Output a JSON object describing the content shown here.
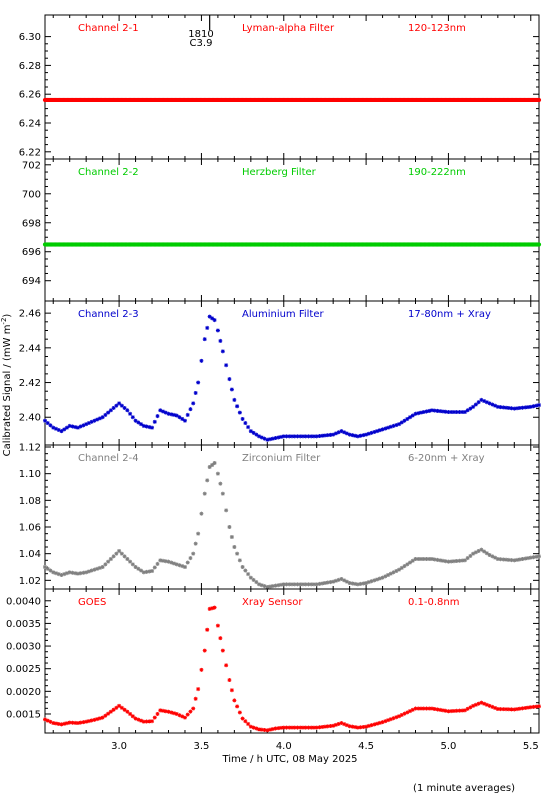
{
  "figure": {
    "ylabel": "Calibrated Signal / (mW m",
    "ylabel_sup": "-2",
    "ylabel_close": ")",
    "xlabel": "Time / h UTC, 08 May 2025",
    "footnote": "(1 minute averages)",
    "flare_label_time": "1810",
    "flare_label_class": "C3.9",
    "flare_time_h": 3.55
  },
  "chart_data": [
    {
      "type": "scatter",
      "labels": [
        "Channel 2-1",
        "Lyman-alpha Filter",
        "120-123nm"
      ],
      "color": "#ff0000",
      "xlim": [
        2.55,
        5.55
      ],
      "ylim": [
        6.215,
        6.315
      ],
      "ytick_values": [
        6.22,
        6.24,
        6.26,
        6.28,
        6.3
      ],
      "ytick_labels": [
        "6.22",
        "6.24",
        "6.26",
        "6.28",
        "6.30"
      ],
      "series": [
        {
          "base": 6.256,
          "points": [
            [
              2.55,
              6.256
            ],
            [
              5.55,
              6.256
            ]
          ]
        }
      ]
    },
    {
      "type": "scatter",
      "labels": [
        "Channel 2-2",
        "Herzberg Filter",
        "190-222nm"
      ],
      "color": "#00cc00",
      "xlim": [
        2.55,
        5.55
      ],
      "ylim": [
        692.6,
        702.4
      ],
      "ytick_values": [
        694,
        696,
        698,
        700,
        702
      ],
      "ytick_labels": [
        "694",
        "696",
        "698",
        "700",
        "702"
      ],
      "series": [
        {
          "base": 696.5,
          "points": [
            [
              2.55,
              696.5
            ],
            [
              5.55,
              696.5
            ]
          ]
        }
      ]
    },
    {
      "type": "scatter",
      "labels": [
        "Channel 2-3",
        "Aluminium Filter",
        "17-80nm + Xray"
      ],
      "color": "#0000cc",
      "xlim": [
        2.55,
        5.55
      ],
      "ylim": [
        2.384,
        2.467
      ],
      "ytick_values": [
        2.4,
        2.42,
        2.44,
        2.46
      ],
      "ytick_labels": [
        "2.40",
        "2.42",
        "2.44",
        "2.46"
      ],
      "series": [
        {
          "points": [
            [
              2.55,
              2.398
            ],
            [
              2.6,
              2.394
            ],
            [
              2.65,
              2.392
            ],
            [
              2.7,
              2.395
            ],
            [
              2.75,
              2.394
            ],
            [
              2.8,
              2.396
            ],
            [
              2.85,
              2.398
            ],
            [
              2.9,
              2.4
            ],
            [
              2.95,
              2.404
            ],
            [
              3.0,
              2.408
            ],
            [
              3.05,
              2.404
            ],
            [
              3.1,
              2.398
            ],
            [
              3.15,
              2.395
            ],
            [
              3.2,
              2.394
            ],
            [
              3.25,
              2.404
            ],
            [
              3.3,
              2.402
            ],
            [
              3.35,
              2.401
            ],
            [
              3.4,
              2.398
            ],
            [
              3.45,
              2.408
            ],
            [
              3.48,
              2.42
            ],
            [
              3.52,
              2.445
            ],
            [
              3.55,
              2.458
            ],
            [
              3.58,
              2.456
            ],
            [
              3.6,
              2.45
            ],
            [
              3.63,
              2.438
            ],
            [
              3.67,
              2.422
            ],
            [
              3.7,
              2.41
            ],
            [
              3.75,
              2.399
            ],
            [
              3.8,
              2.392
            ],
            [
              3.85,
              2.389
            ],
            [
              3.9,
              2.387
            ],
            [
              3.95,
              2.388
            ],
            [
              4.0,
              2.389
            ],
            [
              4.1,
              2.389
            ],
            [
              4.2,
              2.389
            ],
            [
              4.3,
              2.39
            ],
            [
              4.35,
              2.392
            ],
            [
              4.4,
              2.39
            ],
            [
              4.45,
              2.389
            ],
            [
              4.5,
              2.39
            ],
            [
              4.6,
              2.393
            ],
            [
              4.7,
              2.396
            ],
            [
              4.8,
              2.402
            ],
            [
              4.9,
              2.404
            ],
            [
              5.0,
              2.403
            ],
            [
              5.1,
              2.403
            ],
            [
              5.15,
              2.406
            ],
            [
              5.2,
              2.41
            ],
            [
              5.25,
              2.408
            ],
            [
              5.3,
              2.406
            ],
            [
              5.4,
              2.405
            ],
            [
              5.5,
              2.406
            ],
            [
              5.55,
              2.407
            ]
          ]
        }
      ]
    },
    {
      "type": "scatter",
      "labels": [
        "Channel 2-4",
        "Zirconium Filter",
        "6-20nm + Xray"
      ],
      "color": "#808080",
      "xlim": [
        2.55,
        5.55
      ],
      "ylim": [
        1.0135,
        1.1215
      ],
      "ytick_values": [
        1.02,
        1.04,
        1.06,
        1.08,
        1.1,
        1.12
      ],
      "ytick_labels": [
        "1.02",
        "1.04",
        "1.06",
        "1.08",
        "1.10",
        "1.12"
      ],
      "series": [
        {
          "points": [
            [
              2.55,
              1.03
            ],
            [
              2.6,
              1.026
            ],
            [
              2.65,
              1.024
            ],
            [
              2.7,
              1.026
            ],
            [
              2.75,
              1.025
            ],
            [
              2.8,
              1.026
            ],
            [
              2.85,
              1.028
            ],
            [
              2.9,
              1.03
            ],
            [
              2.95,
              1.036
            ],
            [
              3.0,
              1.042
            ],
            [
              3.05,
              1.036
            ],
            [
              3.1,
              1.03
            ],
            [
              3.15,
              1.026
            ],
            [
              3.2,
              1.027
            ],
            [
              3.25,
              1.035
            ],
            [
              3.3,
              1.034
            ],
            [
              3.35,
              1.032
            ],
            [
              3.4,
              1.03
            ],
            [
              3.45,
              1.04
            ],
            [
              3.48,
              1.055
            ],
            [
              3.52,
              1.085
            ],
            [
              3.55,
              1.105
            ],
            [
              3.58,
              1.108
            ],
            [
              3.6,
              1.1
            ],
            [
              3.63,
              1.085
            ],
            [
              3.67,
              1.06
            ],
            [
              3.7,
              1.045
            ],
            [
              3.75,
              1.03
            ],
            [
              3.8,
              1.022
            ],
            [
              3.85,
              1.017
            ],
            [
              3.9,
              1.015
            ],
            [
              3.95,
              1.016
            ],
            [
              4.0,
              1.017
            ],
            [
              4.1,
              1.017
            ],
            [
              4.2,
              1.017
            ],
            [
              4.3,
              1.019
            ],
            [
              4.35,
              1.021
            ],
            [
              4.4,
              1.018
            ],
            [
              4.45,
              1.017
            ],
            [
              4.5,
              1.018
            ],
            [
              4.6,
              1.022
            ],
            [
              4.7,
              1.028
            ],
            [
              4.8,
              1.036
            ],
            [
              4.9,
              1.036
            ],
            [
              5.0,
              1.034
            ],
            [
              5.1,
              1.035
            ],
            [
              5.15,
              1.04
            ],
            [
              5.2,
              1.043
            ],
            [
              5.25,
              1.039
            ],
            [
              5.3,
              1.036
            ],
            [
              5.4,
              1.035
            ],
            [
              5.5,
              1.037
            ],
            [
              5.55,
              1.038
            ]
          ]
        }
      ]
    },
    {
      "type": "scatter",
      "labels": [
        "GOES",
        "Xray Sensor",
        "0.1-0.8nm"
      ],
      "color": "#ff0000",
      "xlim": [
        2.55,
        5.55
      ],
      "ylim": [
        0.00108,
        0.00426
      ],
      "ytick_values": [
        0.0015,
        0.002,
        0.0025,
        0.003,
        0.0035,
        0.004
      ],
      "ytick_labels": [
        "0.0015",
        "0.0020",
        "0.0025",
        "0.0030",
        "0.0035",
        "0.0040"
      ],
      "series": [
        {
          "points": [
            [
              2.55,
              0.00138
            ],
            [
              2.6,
              0.0013
            ],
            [
              2.65,
              0.00127
            ],
            [
              2.7,
              0.00131
            ],
            [
              2.75,
              0.0013
            ],
            [
              2.8,
              0.00133
            ],
            [
              2.85,
              0.00137
            ],
            [
              2.9,
              0.00142
            ],
            [
              2.95,
              0.00155
            ],
            [
              3.0,
              0.00168
            ],
            [
              3.05,
              0.00155
            ],
            [
              3.1,
              0.0014
            ],
            [
              3.15,
              0.00133
            ],
            [
              3.2,
              0.00134
            ],
            [
              3.25,
              0.00158
            ],
            [
              3.3,
              0.00155
            ],
            [
              3.35,
              0.0015
            ],
            [
              3.4,
              0.00142
            ],
            [
              3.45,
              0.00162
            ],
            [
              3.48,
              0.00205
            ],
            [
              3.52,
              0.0029
            ],
            [
              3.55,
              0.00382
            ],
            [
              3.58,
              0.00385
            ],
            [
              3.6,
              0.00345
            ],
            [
              3.63,
              0.0029
            ],
            [
              3.67,
              0.00225
            ],
            [
              3.7,
              0.0018
            ],
            [
              3.75,
              0.0014
            ],
            [
              3.8,
              0.00122
            ],
            [
              3.85,
              0.00116
            ],
            [
              3.9,
              0.00114
            ],
            [
              3.95,
              0.00118
            ],
            [
              4.0,
              0.0012
            ],
            [
              4.1,
              0.0012
            ],
            [
              4.2,
              0.0012
            ],
            [
              4.3,
              0.00124
            ],
            [
              4.35,
              0.0013
            ],
            [
              4.4,
              0.00123
            ],
            [
              4.45,
              0.0012
            ],
            [
              4.5,
              0.00122
            ],
            [
              4.6,
              0.00132
            ],
            [
              4.7,
              0.00145
            ],
            [
              4.8,
              0.00162
            ],
            [
              4.9,
              0.00162
            ],
            [
              5.0,
              0.00156
            ],
            [
              5.1,
              0.00158
            ],
            [
              5.15,
              0.00168
            ],
            [
              5.2,
              0.00175
            ],
            [
              5.25,
              0.00168
            ],
            [
              5.3,
              0.00161
            ],
            [
              5.4,
              0.0016
            ],
            [
              5.5,
              0.00165
            ],
            [
              5.55,
              0.00167
            ]
          ]
        }
      ]
    }
  ],
  "xaxis": {
    "xlim": [
      2.55,
      5.55
    ],
    "tick_values": [
      3.0,
      3.5,
      4.0,
      4.5,
      5.0,
      5.5
    ],
    "tick_labels": [
      "3.0",
      "3.5",
      "4.0",
      "4.5",
      "5.0",
      "5.5"
    ],
    "minor_step": 0.1
  }
}
